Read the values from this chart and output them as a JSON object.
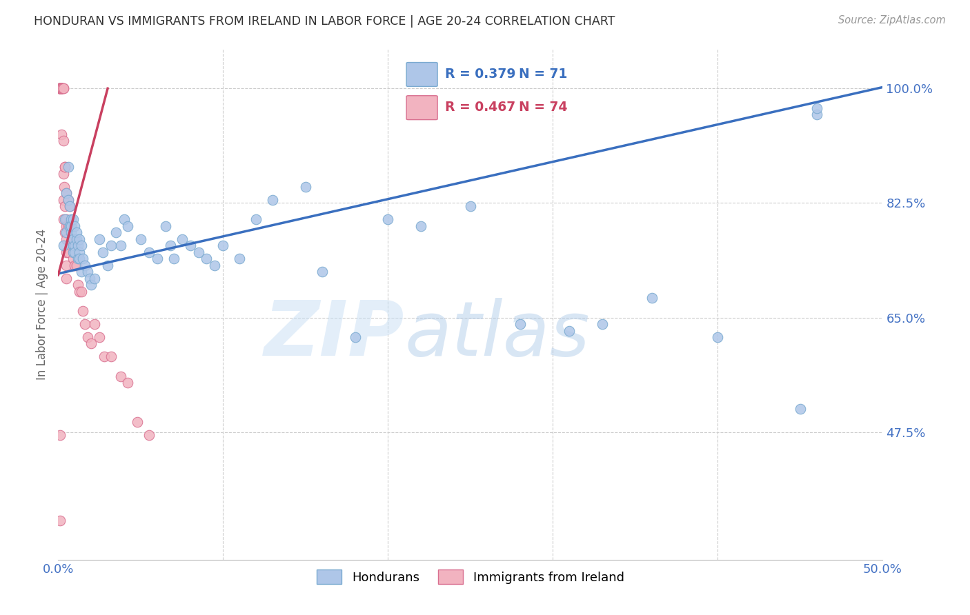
{
  "title": "HONDURAN VS IMMIGRANTS FROM IRELAND IN LABOR FORCE | AGE 20-24 CORRELATION CHART",
  "source": "Source: ZipAtlas.com",
  "ylabel": "In Labor Force | Age 20-24",
  "x_ticks": [
    0.0,
    0.1,
    0.2,
    0.3,
    0.4,
    0.5
  ],
  "x_tick_labels": [
    "0.0%",
    "",
    "",
    "",
    "",
    "50.0%"
  ],
  "y_ticks": [
    0.475,
    0.65,
    0.825,
    1.0
  ],
  "y_tick_labels": [
    "47.5%",
    "65.0%",
    "82.5%",
    "100.0%"
  ],
  "xlim": [
    0.0,
    0.5
  ],
  "ylim": [
    0.28,
    1.06
  ],
  "blue_R": 0.379,
  "blue_N": 71,
  "pink_R": 0.467,
  "pink_N": 74,
  "legend_label_blue": "Hondurans",
  "legend_label_pink": "Immigrants from Ireland",
  "watermark_zip": "ZIP",
  "watermark_atlas": "atlas",
  "dot_color_blue": "#aec6e8",
  "dot_color_pink": "#f2b3c0",
  "line_color_blue": "#3a6fbf",
  "line_color_pink": "#c94060",
  "dot_edge_blue": "#7aaad0",
  "dot_edge_pink": "#d97090",
  "title_color": "#333333",
  "axis_color": "#4472c4",
  "ylabel_color": "#666666",
  "blue_line_x": [
    0.0,
    0.5
  ],
  "blue_line_y": [
    0.717,
    1.002
  ],
  "pink_line_x": [
    0.0,
    0.03
  ],
  "pink_line_y": [
    0.715,
    1.0
  ],
  "blue_scatter_x": [
    0.003,
    0.004,
    0.005,
    0.005,
    0.006,
    0.006,
    0.007,
    0.007,
    0.007,
    0.008,
    0.008,
    0.008,
    0.009,
    0.009,
    0.009,
    0.009,
    0.01,
    0.01,
    0.01,
    0.011,
    0.011,
    0.012,
    0.012,
    0.013,
    0.013,
    0.013,
    0.014,
    0.014,
    0.015,
    0.016,
    0.018,
    0.019,
    0.02,
    0.022,
    0.025,
    0.027,
    0.03,
    0.032,
    0.035,
    0.038,
    0.04,
    0.042,
    0.05,
    0.055,
    0.06,
    0.065,
    0.068,
    0.07,
    0.075,
    0.08,
    0.085,
    0.09,
    0.095,
    0.1,
    0.11,
    0.12,
    0.13,
    0.15,
    0.16,
    0.18,
    0.2,
    0.22,
    0.25,
    0.28,
    0.31,
    0.33,
    0.36,
    0.4,
    0.45,
    0.46,
    0.46
  ],
  "blue_scatter_y": [
    0.76,
    0.8,
    0.78,
    0.84,
    0.83,
    0.88,
    0.79,
    0.82,
    0.79,
    0.78,
    0.8,
    0.79,
    0.76,
    0.75,
    0.77,
    0.8,
    0.76,
    0.79,
    0.75,
    0.77,
    0.78,
    0.74,
    0.76,
    0.75,
    0.77,
    0.74,
    0.72,
    0.76,
    0.74,
    0.73,
    0.72,
    0.71,
    0.7,
    0.71,
    0.77,
    0.75,
    0.73,
    0.76,
    0.78,
    0.76,
    0.8,
    0.79,
    0.77,
    0.75,
    0.74,
    0.79,
    0.76,
    0.74,
    0.77,
    0.76,
    0.75,
    0.74,
    0.73,
    0.76,
    0.74,
    0.8,
    0.83,
    0.85,
    0.72,
    0.62,
    0.8,
    0.79,
    0.82,
    0.64,
    0.63,
    0.64,
    0.68,
    0.62,
    0.51,
    0.96,
    0.97
  ],
  "pink_scatter_x": [
    0.0005,
    0.0005,
    0.0005,
    0.001,
    0.001,
    0.001,
    0.001,
    0.001,
    0.001,
    0.001,
    0.001,
    0.001,
    0.001,
    0.001,
    0.001,
    0.0015,
    0.0015,
    0.0015,
    0.002,
    0.002,
    0.002,
    0.002,
    0.002,
    0.002,
    0.002,
    0.0025,
    0.0025,
    0.003,
    0.003,
    0.003,
    0.003,
    0.003,
    0.003,
    0.0035,
    0.004,
    0.004,
    0.004,
    0.004,
    0.005,
    0.005,
    0.005,
    0.005,
    0.005,
    0.005,
    0.005,
    0.006,
    0.006,
    0.006,
    0.007,
    0.007,
    0.008,
    0.008,
    0.009,
    0.009,
    0.01,
    0.01,
    0.011,
    0.012,
    0.013,
    0.014,
    0.015,
    0.016,
    0.018,
    0.02,
    0.022,
    0.025,
    0.028,
    0.032,
    0.038,
    0.042,
    0.048,
    0.055,
    0.001,
    0.001
  ],
  "pink_scatter_y": [
    1.0,
    1.0,
    1.0,
    1.0,
    1.0,
    1.0,
    1.0,
    1.0,
    1.0,
    1.0,
    1.0,
    1.0,
    1.0,
    1.0,
    1.0,
    1.0,
    1.0,
    1.0,
    1.0,
    1.0,
    1.0,
    1.0,
    1.0,
    1.0,
    0.93,
    1.0,
    1.0,
    1.0,
    1.0,
    0.92,
    0.87,
    0.83,
    0.8,
    0.85,
    0.88,
    0.82,
    0.78,
    0.88,
    0.84,
    0.8,
    0.77,
    0.75,
    0.79,
    0.73,
    0.71,
    0.83,
    0.79,
    0.75,
    0.82,
    0.79,
    0.79,
    0.76,
    0.77,
    0.74,
    0.77,
    0.73,
    0.73,
    0.7,
    0.69,
    0.69,
    0.66,
    0.64,
    0.62,
    0.61,
    0.64,
    0.62,
    0.59,
    0.59,
    0.56,
    0.55,
    0.49,
    0.47,
    0.34,
    0.47
  ]
}
